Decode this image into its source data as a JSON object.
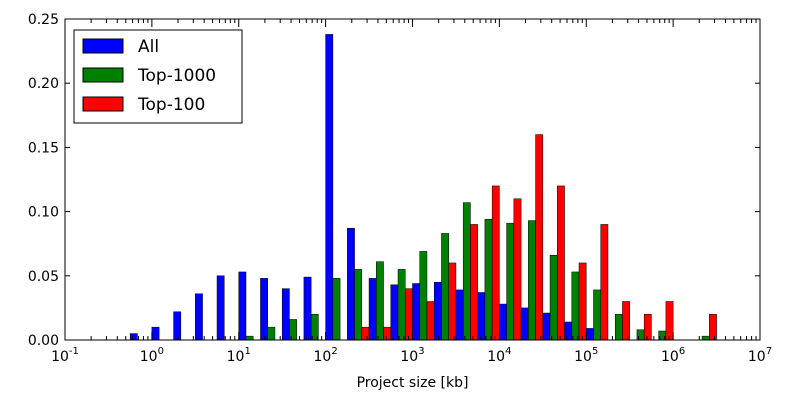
{
  "chart_data": {
    "type": "bar",
    "xlabel": "Project size [kb]",
    "ylabel": "",
    "x_scale": "log10",
    "xlim": [
      0.1,
      10000000
    ],
    "ylim": [
      0,
      0.25
    ],
    "yticks": [
      "0.00",
      "0.05",
      "0.10",
      "0.15",
      "0.20",
      "0.25"
    ],
    "xticks": [
      {
        "base": "10",
        "exp": "-1"
      },
      {
        "base": "10",
        "exp": "0"
      },
      {
        "base": "10",
        "exp": "1"
      },
      {
        "base": "10",
        "exp": "2"
      },
      {
        "base": "10",
        "exp": "3"
      },
      {
        "base": "10",
        "exp": "4"
      },
      {
        "base": "10",
        "exp": "5"
      },
      {
        "base": "10",
        "exp": "6"
      },
      {
        "base": "10",
        "exp": "7"
      }
    ],
    "bin_log10_edges": [
      -1.0,
      -0.75,
      -0.5,
      -0.25,
      0.0,
      0.25,
      0.5,
      0.75,
      1.0,
      1.25,
      1.5,
      1.75,
      2.0,
      2.25,
      2.5,
      2.75,
      3.0,
      3.25,
      3.5,
      3.75,
      4.0,
      4.25,
      4.5,
      4.75,
      5.0,
      5.25,
      5.5,
      5.75,
      6.0,
      6.25,
      6.5,
      6.75,
      7.0
    ],
    "legend": {
      "position": "top-left"
    },
    "series": [
      {
        "name": "All",
        "color": "#0000ff",
        "values": [
          0,
          0,
          0,
          0.005,
          0.01,
          0.022,
          0.036,
          0.05,
          0.053,
          0.048,
          0.04,
          0.049,
          0.238,
          0.087,
          0.048,
          0.043,
          0.044,
          0.045,
          0.039,
          0.037,
          0.028,
          0.025,
          0.021,
          0.014,
          0.009,
          0,
          0,
          0,
          0,
          0,
          0,
          0
        ]
      },
      {
        "name": "Top-1000",
        "color": "#008000",
        "values": [
          0,
          0,
          0,
          0,
          0,
          0,
          0,
          0,
          0.003,
          0.01,
          0.016,
          0.02,
          0.048,
          0.055,
          0.061,
          0.055,
          0.069,
          0.083,
          0.107,
          0.094,
          0.091,
          0.093,
          0.066,
          0.053,
          0.039,
          0.02,
          0.008,
          0.007,
          0,
          0.003,
          0,
          0
        ]
      },
      {
        "name": "Top-100",
        "color": "#ff0000",
        "values": [
          0,
          0,
          0,
          0,
          0,
          0,
          0,
          0,
          0,
          0,
          0,
          0,
          0,
          0.01,
          0.01,
          0.04,
          0.03,
          0.06,
          0.09,
          0.12,
          0.11,
          0.16,
          0.12,
          0.06,
          0.09,
          0.03,
          0.02,
          0.03,
          0,
          0.02,
          0,
          0
        ]
      }
    ]
  }
}
